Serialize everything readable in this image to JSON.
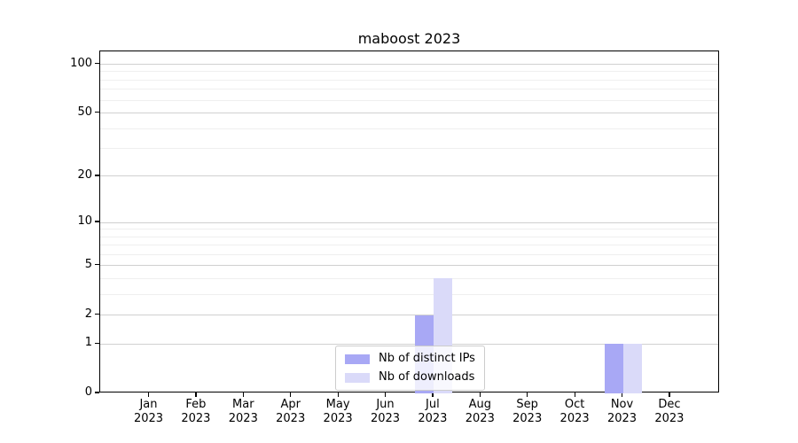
{
  "title": "maboost 2023",
  "chart_data": {
    "type": "bar",
    "title": "maboost 2023",
    "xlabel": "",
    "ylabel": "",
    "scale": "log1p",
    "ylim": [
      0,
      120
    ],
    "grid": "horizontal",
    "legend_position": "lower center",
    "year": "2023",
    "categories": [
      "Jan",
      "Feb",
      "Mar",
      "Apr",
      "May",
      "Jun",
      "Jul",
      "Aug",
      "Sep",
      "Oct",
      "Nov",
      "Dec"
    ],
    "y_ticks": [
      0,
      1,
      2,
      5,
      10,
      20,
      50,
      100
    ],
    "y_minor_grid": [
      3,
      4,
      6,
      7,
      8,
      9,
      30,
      40,
      60,
      70,
      80,
      90
    ],
    "series": [
      {
        "name": "Nb of distinct IPs",
        "color": "#a8a8f5",
        "values": [
          0,
          0,
          0,
          0,
          0,
          0,
          2,
          0,
          0,
          0,
          1,
          0
        ]
      },
      {
        "name": "Nb of downloads",
        "color": "#dadaf9",
        "values": [
          0,
          0,
          0,
          0,
          0,
          0,
          4,
          0,
          0,
          0,
          1,
          0
        ]
      }
    ]
  },
  "colors": {
    "spine": "#000000",
    "grid_major": "#d0d0d0",
    "grid_minor": "#efefef",
    "background": "#ffffff"
  }
}
